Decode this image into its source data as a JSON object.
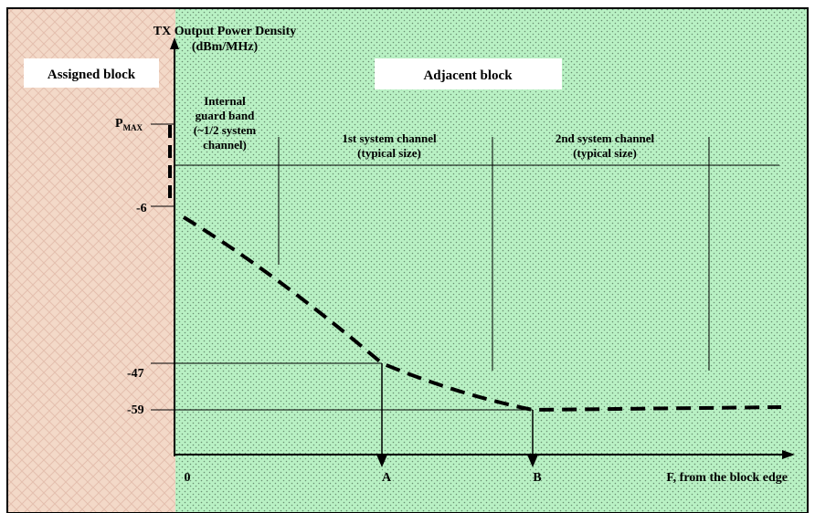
{
  "axis": {
    "y_title_line1": "TX Output Power Density",
    "y_title_line2": "(dBm/MHz)",
    "x_title": "F, from the block edge"
  },
  "regions": {
    "assigned": "Assigned block",
    "adjacent": "Adjacent block"
  },
  "channels": {
    "guard_line1": "Internal",
    "guard_line2": "guard band",
    "guard_line3": "(~1/2 system",
    "guard_line4": "channel)",
    "ch1_line1": "1st system channel",
    "ch1_line2": "(typical size)",
    "ch2_line1": "2nd system channel",
    "ch2_line2": "(typical size)"
  },
  "y_ticks": {
    "pmax_main": "P",
    "pmax_sub": "MAX",
    "t1": "-6",
    "t2": "-47",
    "t3": "-59"
  },
  "x_ticks": {
    "origin": "0",
    "a": "A",
    "b": "B"
  },
  "colors": {
    "assigned_bg": "#f3d9c8",
    "adjacent_bg": "#b9f1c4",
    "dots": "#6a8f72",
    "line": "#000000"
  }
}
